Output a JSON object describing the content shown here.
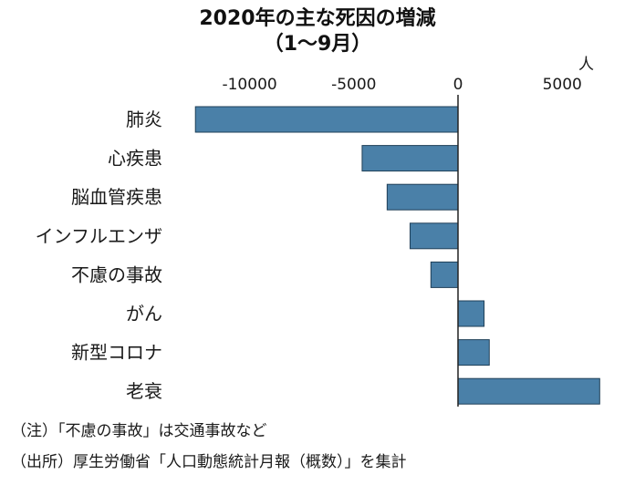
{
  "chart_data": {
    "type": "bar",
    "orientation": "horizontal",
    "title_line1": "2020年の主な死因の増減",
    "title_line2": "（1〜9月）",
    "unit_label": "人",
    "categories": [
      "肺炎",
      "心疾患",
      "脳血管疾患",
      "インフルエンザ",
      "不慮の事故",
      "がん",
      "新型コロナ",
      "老衰"
    ],
    "values": [
      -12600,
      -4600,
      -3400,
      -2300,
      -1300,
      1250,
      1500,
      6800
    ],
    "x_ticks": [
      -10000,
      -5000,
      0,
      5000
    ],
    "x_tick_labels": [
      "-10000",
      "-5000",
      "0",
      "5000"
    ],
    "xlim": [
      -13000,
      7600
    ],
    "bar_color": "#4a80a8",
    "bar_edge_color": "#1f3f57"
  },
  "notes": [
    "（注）「不慮の事故」は交通事故など",
    "（出所）厚生労働省「人口動態統計月報（概数）」を集計"
  ]
}
